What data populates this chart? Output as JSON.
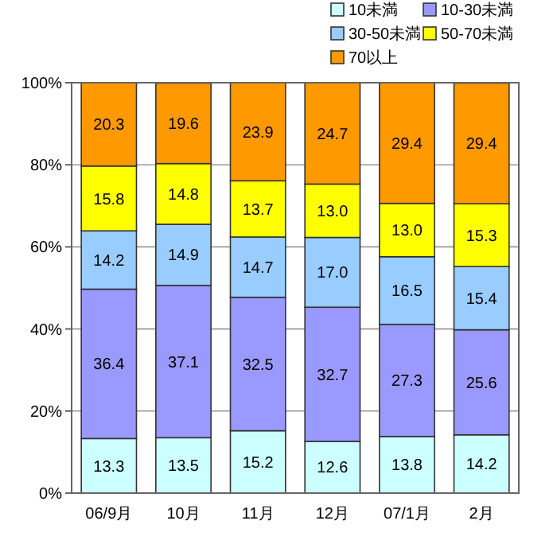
{
  "chart_data": {
    "type": "bar",
    "stacked": true,
    "categories": [
      "06/9月",
      "10月",
      "11月",
      "12月",
      "07/1月",
      "2月"
    ],
    "series": [
      {
        "name": "10未満",
        "color": "#ccffff",
        "values": [
          13.3,
          13.5,
          15.2,
          12.6,
          13.8,
          14.2
        ]
      },
      {
        "name": "10-30未満",
        "color": "#9999ff",
        "values": [
          36.4,
          37.1,
          32.5,
          32.7,
          27.3,
          25.6
        ]
      },
      {
        "name": "30-50未満",
        "color": "#99ccff",
        "values": [
          14.2,
          14.9,
          14.7,
          17.0,
          16.5,
          15.4
        ],
        "value_labels": [
          "14.2",
          "14.9",
          "14.7",
          "17.0",
          "16.5",
          "15.4"
        ]
      },
      {
        "name": "50-70未満",
        "color": "#ffff00",
        "values": [
          15.8,
          14.8,
          13.7,
          13.0,
          13.0,
          15.3
        ],
        "value_labels": [
          "15.8",
          "14.8",
          "13.7",
          "13.0",
          "13.0",
          "15.3"
        ]
      },
      {
        "name": "70以上",
        "color": "#ff9900",
        "values": [
          20.3,
          19.6,
          23.9,
          24.7,
          29.4,
          29.4
        ]
      }
    ],
    "ylim": [
      0,
      100
    ],
    "yticks": [
      {
        "value": 0,
        "label": "0%"
      },
      {
        "value": 20,
        "label": "20%"
      },
      {
        "value": 40,
        "label": "40%"
      },
      {
        "value": 60,
        "label": "60%"
      },
      {
        "value": 80,
        "label": "80%"
      },
      {
        "value": 100,
        "label": "100%"
      }
    ],
    "grid": "y",
    "legend": "top right",
    "data_labels": true
  }
}
